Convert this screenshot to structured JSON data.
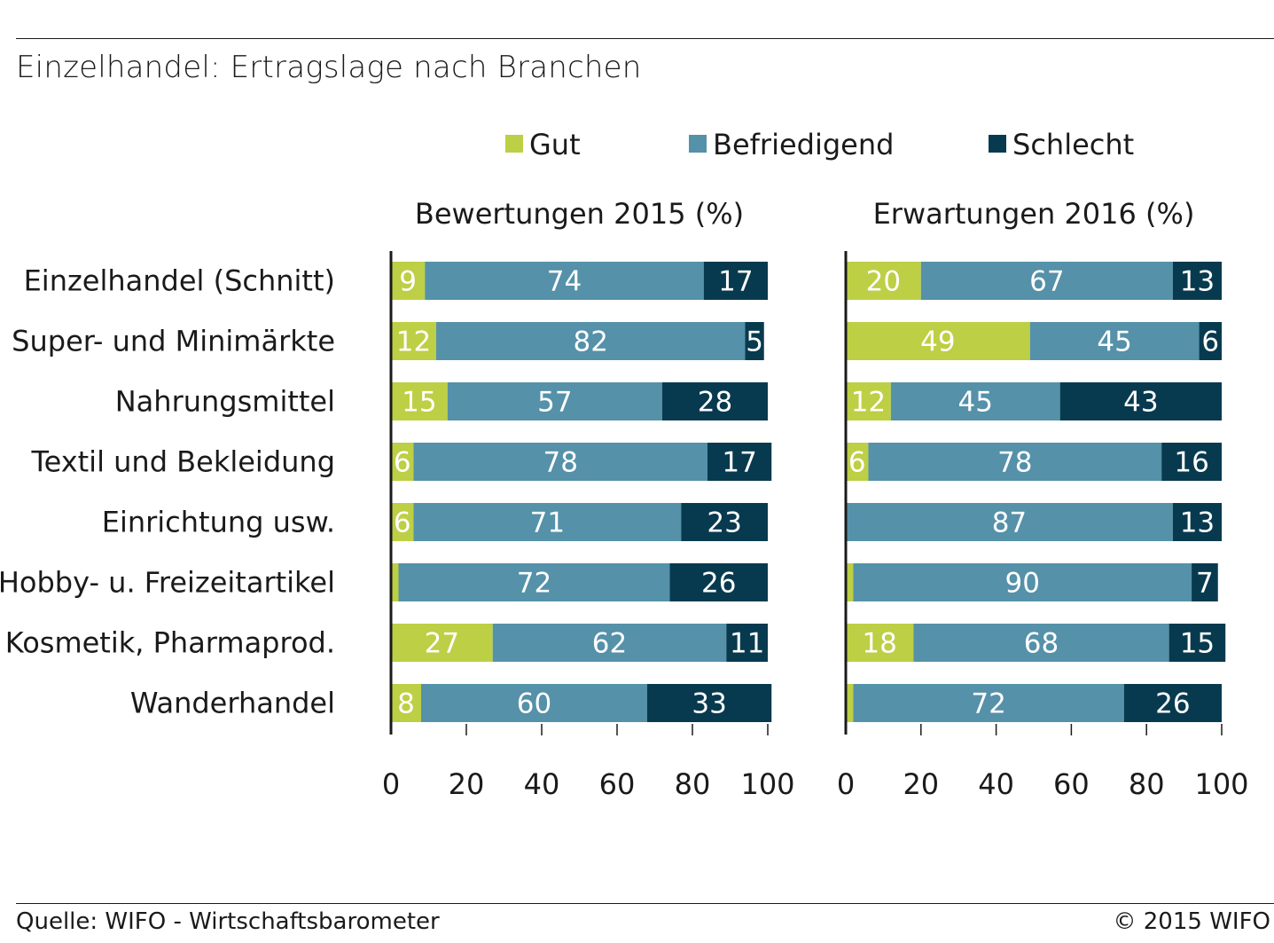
{
  "title": "Einzelhandel: Ertragslage nach Branchen",
  "footer": {
    "source": "Quelle: WIFO - Wirtschaftsbarometer",
    "copyright": "© 2015 WIFO"
  },
  "colors": {
    "gut": "#bdcf44",
    "befriedigend": "#5591a9",
    "schlecht": "#083a4f",
    "axis": "#1a1a1a"
  },
  "chart_data": [
    {
      "type": "bar",
      "orientation": "horizontal",
      "stacked": true,
      "title": "Bewertungen 2015 (%)",
      "categories": [
        "Einzelhandel (Schnitt)",
        "Super- und Minimärkte",
        "Nahrungsmittel",
        "Textil und Bekleidung",
        "Einrichtung usw.",
        "Hobby- u. Freizeitartikel",
        "Kosmetik, Pharmaprod.",
        "Wanderhandel"
      ],
      "series": [
        {
          "name": "Gut",
          "values": [
            9,
            12,
            15,
            6,
            6,
            2,
            27,
            8
          ],
          "labels": [
            "9",
            "12",
            "15",
            "6",
            "6",
            "",
            "27",
            "8"
          ]
        },
        {
          "name": "Befriedigend",
          "values": [
            74,
            82,
            57,
            78,
            71,
            72,
            62,
            60
          ],
          "labels": [
            "74",
            "82",
            "57",
            "78",
            "71",
            "72",
            "62",
            "60"
          ]
        },
        {
          "name": "Schlecht",
          "values": [
            17,
            5,
            28,
            17,
            23,
            26,
            11,
            33
          ],
          "labels": [
            "17",
            "5",
            "28",
            "17",
            "23",
            "26",
            "11",
            "33"
          ]
        }
      ],
      "xlim": [
        0,
        100
      ],
      "xticks": [
        "0",
        "20",
        "40",
        "60",
        "80",
        "100"
      ],
      "legend": "top",
      "grid": false
    },
    {
      "type": "bar",
      "orientation": "horizontal",
      "stacked": true,
      "title": "Erwartungen 2016 (%)",
      "categories": [
        "Einzelhandel (Schnitt)",
        "Super- und Minimärkte",
        "Nahrungsmittel",
        "Textil und Bekleidung",
        "Einrichtung usw.",
        "Hobby- u. Freizeitartikel",
        "Kosmetik, Pharmaprod.",
        "Wanderhandel"
      ],
      "series": [
        {
          "name": "Gut",
          "values": [
            20,
            49,
            12,
            6,
            0,
            2,
            18,
            2
          ],
          "labels": [
            "20",
            "49",
            "12",
            "6",
            "",
            "",
            "18",
            ""
          ]
        },
        {
          "name": "Befriedigend",
          "values": [
            67,
            45,
            45,
            78,
            87,
            90,
            68,
            72
          ],
          "labels": [
            "67",
            "45",
            "45",
            "78",
            "87",
            "90",
            "68",
            "72"
          ]
        },
        {
          "name": "Schlecht",
          "values": [
            13,
            6,
            43,
            16,
            13,
            7,
            15,
            26
          ],
          "labels": [
            "13",
            "6",
            "43",
            "16",
            "13",
            "7",
            "15",
            "26"
          ]
        }
      ],
      "xlim": [
        0,
        100
      ],
      "xticks": [
        "0",
        "20",
        "40",
        "60",
        "80",
        "100"
      ],
      "legend": "top",
      "grid": false
    }
  ]
}
